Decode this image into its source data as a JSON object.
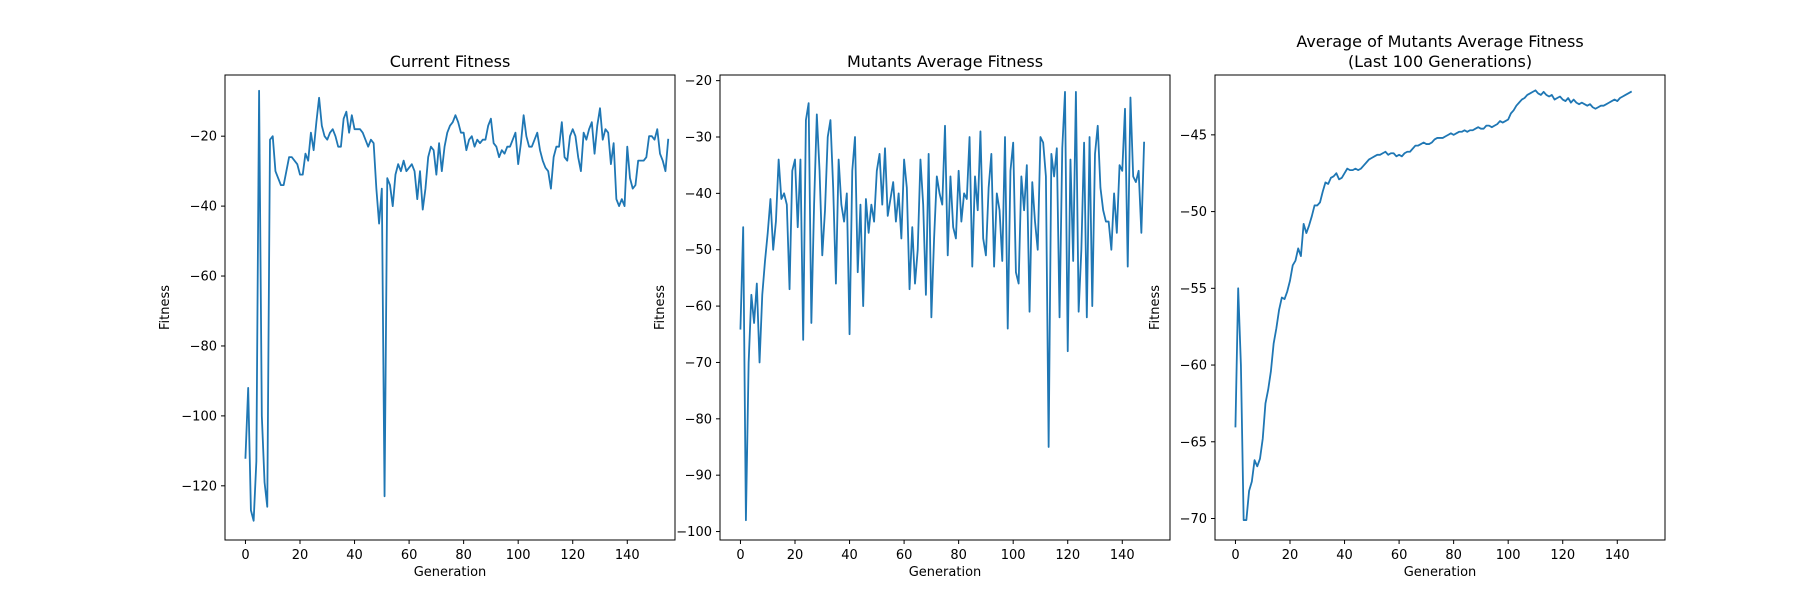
{
  "figure": {
    "line_color": "#1f77b4"
  },
  "chart_data": [
    {
      "type": "line",
      "title": "Current Fitness",
      "xlabel": "Generation",
      "ylabel": "Fitness",
      "xlim": [
        -7.5,
        157.5
      ],
      "ylim": [
        -135.5,
        -2.5
      ],
      "xticks": [
        0,
        20,
        40,
        60,
        80,
        100,
        120,
        140
      ],
      "yticks": [
        -120,
        -100,
        -80,
        -60,
        -40,
        -20
      ],
      "series": [
        {
          "y": [
            -112,
            -92,
            -127,
            -130,
            -113,
            -7,
            -100,
            -119,
            -126,
            -21,
            -20,
            -30,
            -32,
            -34,
            -34,
            -30,
            -26,
            -26,
            -27,
            -28,
            -31,
            -31,
            -25,
            -27,
            -19,
            -24,
            -16,
            -9,
            -17,
            -20,
            -21,
            -19,
            -18,
            -20,
            -23,
            -23,
            -15,
            -13,
            -19,
            -14,
            -18,
            -18,
            -18,
            -19,
            -21,
            -23,
            -21,
            -22,
            -35,
            -45,
            -35,
            -123,
            -32,
            -34,
            -40,
            -31,
            -28,
            -30,
            -27,
            -30,
            -29,
            -28,
            -30,
            -38,
            -30,
            -41,
            -35,
            -26,
            -23,
            -24,
            -31,
            -22,
            -30,
            -23,
            -19,
            -17,
            -16,
            -14,
            -16,
            -19,
            -19,
            -24,
            -21,
            -20,
            -23,
            -21,
            -22,
            -21,
            -21,
            -17,
            -15,
            -22,
            -23,
            -26,
            -24,
            -25,
            -23,
            -23,
            -21,
            -19,
            -28,
            -22,
            -14,
            -20,
            -23,
            -23,
            -21,
            -19,
            -24,
            -27,
            -29,
            -30,
            -35,
            -26,
            -23,
            -23,
            -16,
            -26,
            -27,
            -20,
            -18,
            -20,
            -26,
            -30,
            -19,
            -21,
            -18,
            -16,
            -25,
            -17,
            -12,
            -21,
            -18,
            -19,
            -28,
            -22,
            -38,
            -40,
            -38,
            -40,
            -23,
            -32,
            -35,
            -34,
            -27,
            -27,
            -27,
            -26,
            -20,
            -20,
            -21,
            -18,
            -25,
            -27,
            -30,
            -21
          ]
        }
      ]
    },
    {
      "type": "line",
      "title": "Mutants Average Fitness",
      "xlabel": "Generation",
      "ylabel": "Fitness",
      "xlim": [
        -7.5,
        157.5
      ],
      "ylim": [
        -101.5,
        -19
      ],
      "xticks": [
        0,
        20,
        40,
        60,
        80,
        100,
        120,
        140
      ],
      "yticks": [
        -100,
        -90,
        -80,
        -70,
        -60,
        -50,
        -40,
        -30,
        -20
      ],
      "series": [
        {
          "y": [
            -64,
            -46,
            -98,
            -70,
            -58,
            -63,
            -56,
            -70,
            -58,
            -52,
            -47,
            -41,
            -50,
            -45,
            -34,
            -41,
            -40,
            -42,
            -57,
            -36,
            -34,
            -46,
            -34,
            -66,
            -27,
            -24,
            -63,
            -42,
            -26,
            -36,
            -51,
            -43,
            -30,
            -27,
            -39,
            -56,
            -34,
            -42,
            -45,
            -40,
            -65,
            -36,
            -30,
            -54,
            -42,
            -60,
            -41,
            -47,
            -42,
            -45,
            -36,
            -33,
            -42,
            -32,
            -44,
            -41,
            -38,
            -45,
            -40,
            -48,
            -34,
            -39,
            -57,
            -46,
            -56,
            -50,
            -34,
            -42,
            -58,
            -33,
            -62,
            -48,
            -37,
            -40,
            -42,
            -28,
            -51,
            -37,
            -46,
            -48,
            -36,
            -45,
            -40,
            -41,
            -30,
            -53,
            -37,
            -43,
            -29,
            -48,
            -51,
            -39,
            -33,
            -53,
            -40,
            -43,
            -52,
            -30,
            -64,
            -36,
            -31,
            -54,
            -56,
            -37,
            -43,
            -35,
            -61,
            -38,
            -45,
            -50,
            -30,
            -31,
            -37,
            -85,
            -33,
            -37,
            -32,
            -62,
            -32,
            -22,
            -68,
            -34,
            -52,
            -22,
            -61,
            -50,
            -31,
            -62,
            -30,
            -60,
            -33,
            -28,
            -39,
            -43,
            -45,
            -45,
            -50,
            -40,
            -47,
            -35,
            -36,
            -25,
            -53,
            -23,
            -37,
            -38,
            -36,
            -47,
            -31
          ]
        }
      ]
    },
    {
      "type": "line",
      "title": "Average of Mutants Average Fitness\n(Last 100 Generations)",
      "xlabel": "Generation",
      "ylabel": "Fitness",
      "xlim": [
        -7.5,
        157.5
      ],
      "ylim": [
        -71.4,
        -41.1
      ],
      "xticks": [
        0,
        20,
        40,
        60,
        80,
        100,
        120,
        140
      ],
      "yticks": [
        -70,
        -65,
        -60,
        -55,
        -50,
        -45
      ],
      "series": [
        {
          "y": [
            -64,
            -55,
            -60,
            -70.1,
            -70.1,
            -68.2,
            -67.6,
            -66.2,
            -66.6,
            -66.1,
            -64.8,
            -62.5,
            -61.6,
            -60.4,
            -58.6,
            -57.6,
            -56.4,
            -55.6,
            -55.7,
            -55.2,
            -54.5,
            -53.5,
            -53.2,
            -52.4,
            -52.9,
            -50.8,
            -51.4,
            -50.9,
            -50.3,
            -49.6,
            -49.6,
            -49.4,
            -48.7,
            -48.1,
            -48.2,
            -47.8,
            -47.7,
            -47.5,
            -47.9,
            -47.8,
            -47.5,
            -47.2,
            -47.3,
            -47.3,
            -47.2,
            -47.3,
            -47.2,
            -47.0,
            -46.8,
            -46.6,
            -46.5,
            -46.4,
            -46.3,
            -46.3,
            -46.2,
            -46.1,
            -46.3,
            -46.2,
            -46.2,
            -46.4,
            -46.3,
            -46.4,
            -46.2,
            -46.1,
            -46.1,
            -45.9,
            -45.7,
            -45.7,
            -45.6,
            -45.5,
            -45.6,
            -45.6,
            -45.5,
            -45.3,
            -45.2,
            -45.2,
            -45.2,
            -45.1,
            -45.0,
            -44.9,
            -45.0,
            -44.9,
            -44.8,
            -44.8,
            -44.7,
            -44.8,
            -44.7,
            -44.7,
            -44.6,
            -44.5,
            -44.6,
            -44.6,
            -44.4,
            -44.4,
            -44.5,
            -44.4,
            -44.3,
            -44.1,
            -44.2,
            -44.1,
            -44.0,
            -43.6,
            -43.4,
            -43.1,
            -42.9,
            -42.7,
            -42.6,
            -42.4,
            -42.3,
            -42.2,
            -42.1,
            -42.3,
            -42.4,
            -42.2,
            -42.4,
            -42.5,
            -42.4,
            -42.7,
            -42.6,
            -42.5,
            -42.7,
            -42.8,
            -42.6,
            -42.9,
            -42.7,
            -42.9,
            -43.0,
            -42.9,
            -43.0,
            -43.1,
            -43.0,
            -43.2,
            -43.3,
            -43.2,
            -43.1,
            -43.1,
            -43.0,
            -42.9,
            -42.8,
            -42.7,
            -42.8,
            -42.6,
            -42.5,
            -42.4,
            -42.3,
            -42.2
          ]
        }
      ]
    }
  ]
}
